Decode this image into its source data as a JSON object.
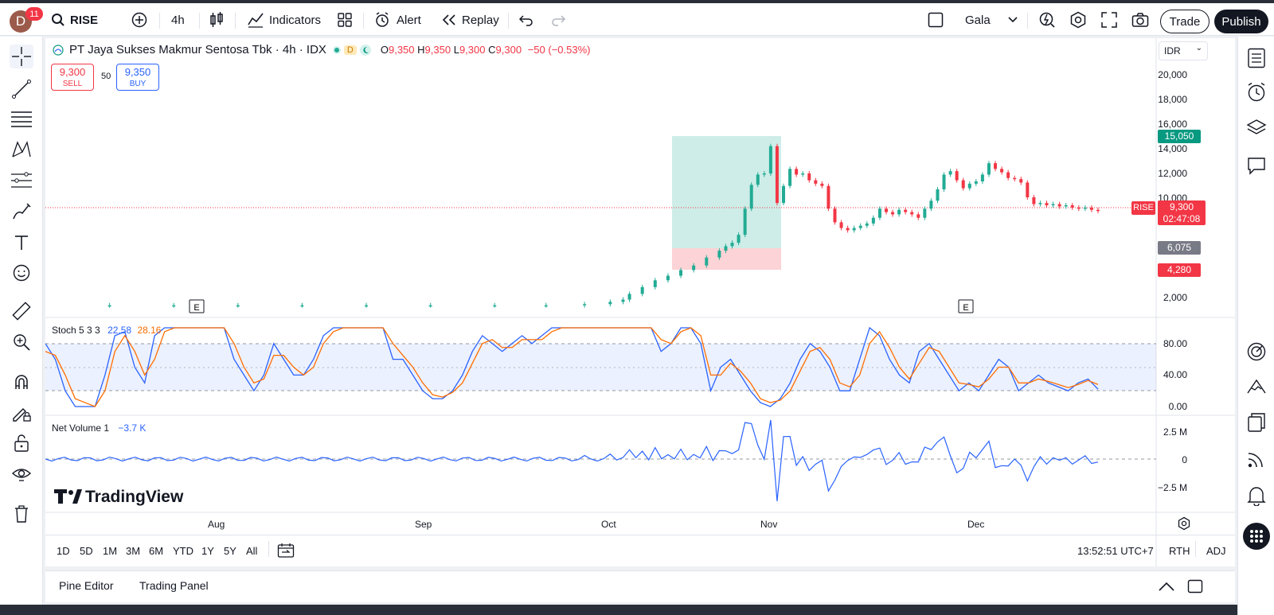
{
  "topbar": {
    "notification_count": "11",
    "avatar_letter": "D",
    "symbol": "RISE",
    "interval": "4h",
    "indicators_label": "Indicators",
    "alert_label": "Alert",
    "replay_label": "Replay",
    "layout_name": "Gala",
    "trade_label": "Trade",
    "publish_label": "Publish"
  },
  "legend": {
    "title": "PT Jaya Sukses Makmur Sentosa Tbk · 4h · IDX",
    "badge_d": "D",
    "open_label": "O",
    "open": "9,350",
    "high_label": "H",
    "high": "9,350",
    "low_label": "L",
    "low": "9,300",
    "close_label": "C",
    "close": "9,300",
    "change": "−50 (−0.53%)"
  },
  "trade": {
    "sell_price": "9,300",
    "sell_label": "SELL",
    "spread": "50",
    "buy_price": "9,350",
    "buy_label": "BUY"
  },
  "price_scale": {
    "currency": "IDR",
    "ticks": [
      "20,000",
      "18,000",
      "16,000",
      "14,000",
      "12,000",
      "10,000",
      "2,000"
    ],
    "tags": {
      "target": "15,050",
      "symbol": "RISE",
      "last": "9,300",
      "countdown": "02:47:08",
      "entry": "6,075",
      "stop": "4,280"
    }
  },
  "indicators": {
    "stoch": {
      "name": "Stoch 5 3 3",
      "k": "22.58",
      "d": "28.16",
      "ticks": [
        "80.00",
        "40.00",
        "0.00"
      ]
    },
    "net_volume": {
      "name": "Net Volume 1",
      "value": "−3.7 K",
      "ticks": [
        "2.5 M",
        "0",
        "−2.5 M"
      ]
    }
  },
  "events": [
    "E",
    "E"
  ],
  "watermark": "TradingView",
  "time_axis": [
    "Aug",
    "Sep",
    "Oct",
    "Nov",
    "Dec"
  ],
  "ranges": [
    "1D",
    "5D",
    "1M",
    "3M",
    "6M",
    "YTD",
    "1Y",
    "5Y",
    "All"
  ],
  "clock": "13:52:51 UTC+7",
  "session": "RTH",
  "adj": "ADJ",
  "bottom_tabs": [
    "Pine Editor",
    "Trading Panel"
  ],
  "colors": {
    "up": "#22ab94",
    "down": "#f23645",
    "stoch_k": "#2962ff",
    "stoch_d": "#ff6d00",
    "netvol": "#2962ff"
  },
  "chart_data": {
    "type": "candlestick",
    "x_ticks": [
      "Aug",
      "Sep",
      "Oct",
      "Nov",
      "Dec"
    ],
    "y_ticks": [
      2000,
      10000,
      12000,
      14000,
      16000,
      18000,
      20000
    ],
    "ylim": [
      0,
      21000
    ],
    "series": [
      {
        "name": "price",
        "points": [
          [
            0,
            1000
          ],
          [
            10,
            1000
          ],
          [
            20,
            1000
          ],
          [
            30,
            1000
          ],
          [
            40,
            1000
          ],
          [
            50,
            1000
          ],
          [
            60,
            1000
          ],
          [
            70,
            1000
          ],
          [
            78,
            1000
          ],
          [
            84,
            1100
          ],
          [
            88,
            1300
          ],
          [
            90,
            1500
          ],
          [
            91,
            2000
          ],
          [
            93,
            2600
          ],
          [
            95,
            3200
          ],
          [
            97,
            3600
          ],
          [
            99,
            4100
          ],
          [
            101,
            4500
          ],
          [
            103,
            5200
          ],
          [
            105,
            5800
          ],
          [
            106,
            6200
          ],
          [
            107,
            6500
          ],
          [
            108,
            7200
          ],
          [
            109,
            9500
          ],
          [
            110,
            11600
          ],
          [
            111,
            12500
          ],
          [
            112,
            12600
          ],
          [
            113,
            15000
          ],
          [
            114,
            10000
          ],
          [
            115,
            11500
          ],
          [
            116,
            13000
          ],
          [
            117,
            12500
          ],
          [
            118,
            12600
          ],
          [
            119,
            12000
          ],
          [
            120,
            11700
          ],
          [
            121,
            11500
          ],
          [
            122,
            9500
          ],
          [
            123,
            8300
          ],
          [
            124,
            7800
          ],
          [
            125,
            7600
          ],
          [
            126,
            7800
          ],
          [
            127,
            8000
          ],
          [
            128,
            8200
          ],
          [
            129,
            8700
          ],
          [
            130,
            9500
          ],
          [
            131,
            9200
          ],
          [
            132,
            9000
          ],
          [
            133,
            9400
          ],
          [
            134,
            9200
          ],
          [
            135,
            9000
          ],
          [
            136,
            8700
          ],
          [
            137,
            9500
          ],
          [
            138,
            10200
          ],
          [
            139,
            11200
          ],
          [
            140,
            12500
          ],
          [
            141,
            12800
          ],
          [
            142,
            12000
          ],
          [
            143,
            11300
          ],
          [
            144,
            11700
          ],
          [
            145,
            11900
          ],
          [
            146,
            12500
          ],
          [
            147,
            13500
          ],
          [
            148,
            13000
          ],
          [
            149,
            12700
          ],
          [
            150,
            12200
          ],
          [
            151,
            12100
          ],
          [
            152,
            11800
          ],
          [
            153,
            10500
          ],
          [
            154,
            9900
          ],
          [
            155,
            10000
          ],
          [
            156,
            9800
          ],
          [
            157,
            9900
          ],
          [
            158,
            9700
          ],
          [
            159,
            9800
          ],
          [
            160,
            9600
          ],
          [
            161,
            9500
          ],
          [
            162,
            9600
          ],
          [
            163,
            9400
          ],
          [
            164,
            9300
          ]
        ]
      }
    ],
    "stoch": {
      "k": [
        80,
        60,
        20,
        0,
        0,
        0,
        40,
        90,
        95,
        50,
        30,
        90,
        100,
        100,
        100,
        100,
        100,
        100,
        100,
        60,
        40,
        20,
        40,
        80,
        60,
        40,
        40,
        60,
        90,
        100,
        100,
        100,
        100,
        100,
        100,
        60,
        60,
        40,
        20,
        10,
        10,
        20,
        40,
        70,
        90,
        80,
        70,
        80,
        90,
        80,
        90,
        100,
        100,
        100,
        100,
        100,
        100,
        100,
        100,
        100,
        100,
        100,
        70,
        80,
        100,
        100,
        80,
        20,
        50,
        60,
        40,
        20,
        5,
        0,
        10,
        30,
        60,
        80,
        70,
        50,
        20,
        20,
        60,
        100,
        90,
        60,
        40,
        30,
        70,
        80,
        60,
        40,
        20,
        30,
        20,
        40,
        60,
        50,
        20,
        30,
        40,
        30,
        25,
        20,
        30,
        35,
        22
      ],
      "d": [
        70,
        65,
        40,
        10,
        5,
        0,
        20,
        70,
        90,
        70,
        40,
        60,
        95,
        100,
        100,
        100,
        100,
        100,
        100,
        80,
        50,
        30,
        35,
        65,
        65,
        50,
        40,
        50,
        80,
        95,
        100,
        100,
        100,
        100,
        100,
        80,
        65,
        50,
        30,
        15,
        12,
        18,
        30,
        55,
        80,
        85,
        75,
        75,
        85,
        85,
        85,
        95,
        100,
        100,
        100,
        100,
        100,
        100,
        100,
        100,
        100,
        100,
        85,
        80,
        95,
        100,
        90,
        40,
        40,
        55,
        45,
        30,
        10,
        5,
        8,
        20,
        45,
        70,
        75,
        60,
        30,
        25,
        40,
        80,
        95,
        75,
        50,
        35,
        55,
        75,
        70,
        50,
        30,
        28,
        25,
        35,
        50,
        50,
        30,
        30,
        35,
        32,
        28,
        24,
        28,
        33,
        28
      ]
    }
  }
}
